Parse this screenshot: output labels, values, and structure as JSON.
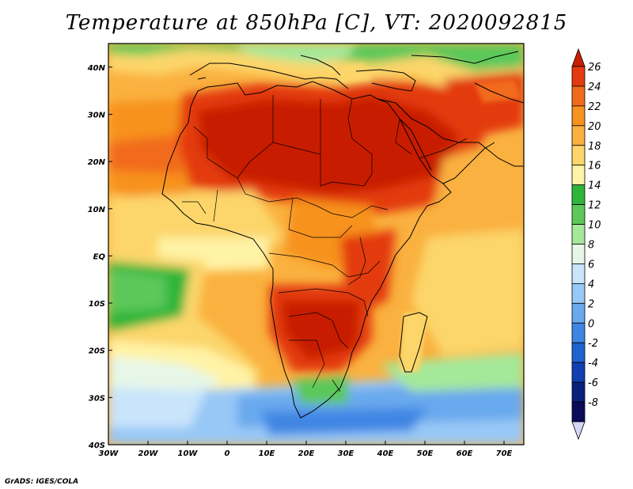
{
  "title": "Temperature at 850hPa [C], VT: 2020092815",
  "credit": "GrADS: IGES/COLA",
  "map": {
    "projection": "latlon",
    "lon_range": [
      -30,
      75
    ],
    "lat_range": [
      -40,
      45
    ],
    "lon_ticks": [
      "30W",
      "20W",
      "10W",
      "0",
      "10E",
      "20E",
      "30E",
      "40E",
      "50E",
      "60E",
      "70E"
    ],
    "lat_ticks": [
      "40N",
      "30N",
      "20N",
      "10N",
      "EQ",
      "10S",
      "20S",
      "30S",
      "40S"
    ]
  },
  "colorbar": {
    "labels": [
      "26",
      "24",
      "22",
      "20",
      "18",
      "16",
      "14",
      "12",
      "10",
      "8",
      "6",
      "4",
      "2",
      "0",
      "-2",
      "-4",
      "-6",
      "-8"
    ],
    "colors": [
      "#c81e00",
      "#e33a10",
      "#f26a1b",
      "#f7921e",
      "#fab13f",
      "#fcd66b",
      "#fff3a6",
      "#2fb53a",
      "#5cc85a",
      "#a5e89a",
      "#e6f7e8",
      "#c9e4fb",
      "#98c8f6",
      "#69a9ee",
      "#3f86e3",
      "#1f63d0",
      "#1240b0",
      "#0a1f7a",
      "#0b0b5a",
      "#d6d6f5"
    ]
  }
}
